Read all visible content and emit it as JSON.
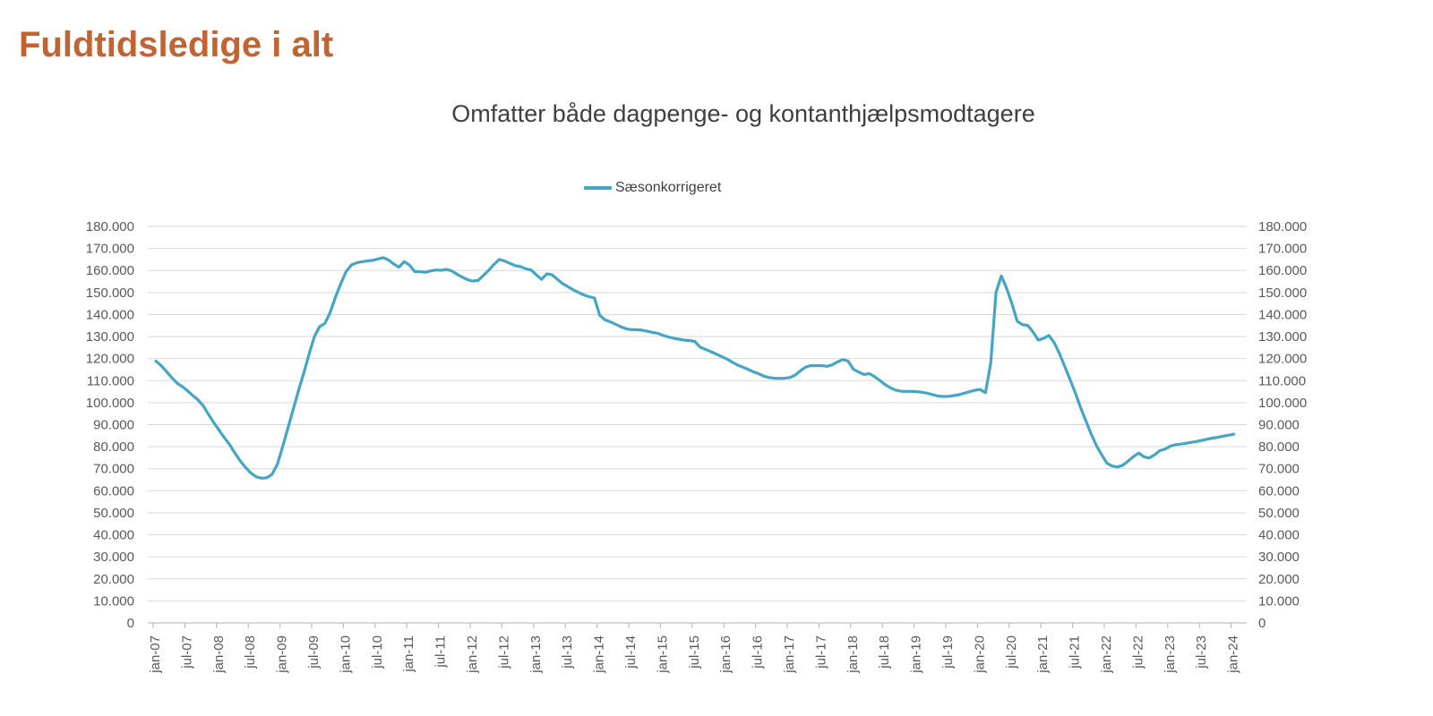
{
  "header": {
    "title": "Fuldtidsledige i alt",
    "title_color": "#c06434"
  },
  "chart_data": {
    "type": "line",
    "title": "Omfatter både dagpenge- og kontanthjælpsmodtagere",
    "legend": [
      "Sæsonkorrigeret"
    ],
    "legend_position": "top-center",
    "grid": "horizontal",
    "gridline_color": "#d9d9d9",
    "axis_line_color": "#bfbfbf",
    "axis_label_color": "#595959",
    "line_color": "#44a5c5",
    "ylim": [
      0,
      180000
    ],
    "y_tick_step": 10000,
    "y_tick_labels": [
      "180.000",
      "170.000",
      "160.000",
      "150.000",
      "140.000",
      "130.000",
      "120.000",
      "110.000",
      "100.000",
      "90.000",
      "80.000",
      "70.000",
      "60.000",
      "50.000",
      "40.000",
      "30.000",
      "20.000",
      "10.000",
      "0"
    ],
    "y_axis_sides": "both",
    "x_tick_labels": [
      "jan-07",
      "jul-07",
      "jan-08",
      "jul-08",
      "jan-09",
      "jul-09",
      "jan-10",
      "jul-10",
      "jan-11",
      "jul-11",
      "jan-12",
      "jul-12",
      "jan-13",
      "jul-13",
      "jan-14",
      "jul-14",
      "jan-15",
      "jul-15",
      "jan-16",
      "jul-16",
      "jan-17",
      "jul-17",
      "jan-18",
      "jul-18",
      "jan-19",
      "jul-19",
      "jan-20",
      "jul-20",
      "jan-21",
      "jul-21",
      "jan-22",
      "jul-22",
      "jan-23",
      "jul-23",
      "jan-24"
    ],
    "x_tick_interval_months": 6,
    "series": [
      {
        "name": "Sæsonkorrigeret",
        "frequency": "monthly",
        "x_start": "jan-07",
        "x_end": "jan-24",
        "values": [
          118900,
          116800,
          114200,
          111400,
          108900,
          107300,
          105400,
          103200,
          101200,
          98500,
          94500,
          90800,
          87400,
          84000,
          80800,
          77000,
          73500,
          70500,
          68000,
          66300,
          65700,
          65900,
          67500,
          72000,
          80000,
          88500,
          97000,
          105500,
          113500,
          122000,
          130000,
          134500,
          136000,
          141000,
          148000,
          154000,
          159500,
          162500,
          163500,
          164000,
          164300,
          164600,
          165200,
          165800,
          164800,
          163000,
          161500,
          164000,
          162500,
          159500,
          159500,
          159200,
          159800,
          160200,
          160100,
          160500,
          159800,
          158300,
          157000,
          155800,
          155200,
          155500,
          157800,
          160100,
          162800,
          165000,
          164300,
          163200,
          162200,
          161800,
          160800,
          160200,
          158000,
          156000,
          158500,
          158000,
          156000,
          154000,
          152600,
          151200,
          150000,
          148900,
          148100,
          147500,
          139700,
          137600,
          136700,
          135600,
          134500,
          133500,
          133100,
          133100,
          132900,
          132400,
          131900,
          131500,
          130500,
          129800,
          129200,
          128800,
          128400,
          128200,
          127800,
          125200,
          124200,
          123200,
          122100,
          121000,
          119900,
          118500,
          117200,
          116200,
          115200,
          114100,
          113200,
          112100,
          111400,
          111100,
          111000,
          111100,
          111400,
          112500,
          114500,
          116200,
          116800,
          116800,
          116800,
          116500,
          117200,
          118500,
          119600,
          118900,
          115200,
          113900,
          112800,
          113200,
          111800,
          110100,
          108200,
          106800,
          105700,
          105200,
          105100,
          105100,
          105000,
          104700,
          104300,
          103600,
          103000,
          102800,
          102900,
          103200,
          103600,
          104300,
          105000,
          105600,
          106000,
          104500,
          118000,
          150000,
          157500,
          152000,
          145000,
          137000,
          135400,
          135100,
          132100,
          128400,
          129200,
          130500,
          127300,
          122300,
          116500,
          110500,
          104500,
          97800,
          91800,
          85800,
          80500,
          76300,
          72500,
          71200,
          70800,
          71600,
          73500,
          75500,
          77100,
          75400,
          74900,
          76300,
          78200,
          78900,
          80300,
          80900,
          81200,
          81600,
          82000,
          82400,
          82900,
          83400,
          83900,
          84300,
          84800,
          85200,
          85700
        ]
      }
    ]
  }
}
